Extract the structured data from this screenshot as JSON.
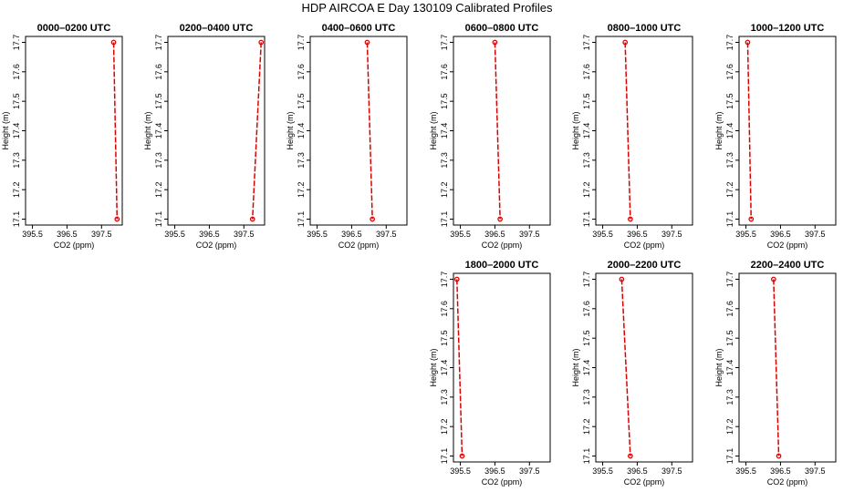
{
  "page": {
    "title": "HDP AIRCOA E  Day 130109  Calibrated Profiles"
  },
  "chart_data": [
    {
      "type": "line",
      "title": "0000–0200 UTC",
      "xlabel": "CO2 (ppm)",
      "ylabel": "Height (m)",
      "xlim": [
        395.3,
        398.1
      ],
      "ylim": [
        17.08,
        17.72
      ],
      "xticks": [
        395.5,
        396.5,
        397.5
      ],
      "xtick_labels": [
        "395.5",
        "396.5",
        "397.5"
      ],
      "yticks": [
        17.1,
        17.2,
        17.3,
        17.4,
        17.5,
        17.6,
        17.7
      ],
      "ytick_labels": [
        "17.1",
        "17.2",
        "17.3",
        "17.4",
        "17.5",
        "17.6",
        "17.7"
      ],
      "points": [
        {
          "x": 397.85,
          "y": 17.7
        },
        {
          "x": 397.95,
          "y": 17.1
        }
      ],
      "color": "#dd0000"
    },
    {
      "type": "line",
      "title": "0200–0400 UTC",
      "xlabel": "CO2 (ppm)",
      "ylabel": "Height (m)",
      "xlim": [
        395.3,
        398.1
      ],
      "ylim": [
        17.08,
        17.72
      ],
      "xticks": [
        395.5,
        396.5,
        397.5
      ],
      "xtick_labels": [
        "395.5",
        "396.5",
        "397.5"
      ],
      "yticks": [
        17.1,
        17.2,
        17.3,
        17.4,
        17.5,
        17.6,
        17.7
      ],
      "ytick_labels": [
        "17.1",
        "17.2",
        "17.3",
        "17.4",
        "17.5",
        "17.6",
        "17.7"
      ],
      "points": [
        {
          "x": 398.0,
          "y": 17.7
        },
        {
          "x": 397.75,
          "y": 17.1
        }
      ],
      "color": "#dd0000"
    },
    {
      "type": "line",
      "title": "0400–0600 UTC",
      "xlabel": "CO2 (ppm)",
      "ylabel": "Height (m)",
      "xlim": [
        395.3,
        398.1
      ],
      "ylim": [
        17.08,
        17.72
      ],
      "xticks": [
        395.5,
        396.5,
        397.5
      ],
      "xtick_labels": [
        "395.5",
        "396.5",
        "397.5"
      ],
      "yticks": [
        17.1,
        17.2,
        17.3,
        17.4,
        17.5,
        17.6,
        17.7
      ],
      "ytick_labels": [
        "17.1",
        "17.2",
        "17.3",
        "17.4",
        "17.5",
        "17.6",
        "17.7"
      ],
      "points": [
        {
          "x": 396.95,
          "y": 17.7
        },
        {
          "x": 397.1,
          "y": 17.1
        }
      ],
      "color": "#dd0000"
    },
    {
      "type": "line",
      "title": "0600–0800 UTC",
      "xlabel": "CO2 (ppm)",
      "ylabel": "Height (m)",
      "xlim": [
        395.3,
        398.1
      ],
      "ylim": [
        17.08,
        17.72
      ],
      "xticks": [
        395.5,
        396.5,
        397.5
      ],
      "xtick_labels": [
        "395.5",
        "396.5",
        "397.5"
      ],
      "yticks": [
        17.1,
        17.2,
        17.3,
        17.4,
        17.5,
        17.6,
        17.7
      ],
      "ytick_labels": [
        "17.1",
        "17.2",
        "17.3",
        "17.4",
        "17.5",
        "17.6",
        "17.7"
      ],
      "points": [
        {
          "x": 396.5,
          "y": 17.7
        },
        {
          "x": 396.65,
          "y": 17.1
        }
      ],
      "color": "#dd0000"
    },
    {
      "type": "line",
      "title": "0800–1000 UTC",
      "xlabel": "CO2 (ppm)",
      "ylabel": "Height (m)",
      "xlim": [
        395.3,
        398.1
      ],
      "ylim": [
        17.08,
        17.72
      ],
      "xticks": [
        395.5,
        396.5,
        397.5
      ],
      "xtick_labels": [
        "395.5",
        "396.5",
        "397.5"
      ],
      "yticks": [
        17.1,
        17.2,
        17.3,
        17.4,
        17.5,
        17.6,
        17.7
      ],
      "ytick_labels": [
        "17.1",
        "17.2",
        "17.3",
        "17.4",
        "17.5",
        "17.6",
        "17.7"
      ],
      "points": [
        {
          "x": 396.15,
          "y": 17.7
        },
        {
          "x": 396.3,
          "y": 17.1
        }
      ],
      "color": "#dd0000"
    },
    {
      "type": "line",
      "title": "1000–1200 UTC",
      "xlabel": "CO2 (ppm)",
      "ylabel": "Height (m)",
      "xlim": [
        395.3,
        398.1
      ],
      "ylim": [
        17.08,
        17.72
      ],
      "xticks": [
        395.5,
        396.5,
        397.5
      ],
      "xtick_labels": [
        "395.5",
        "396.5",
        "397.5"
      ],
      "yticks": [
        17.1,
        17.2,
        17.3,
        17.4,
        17.5,
        17.6,
        17.7
      ],
      "ytick_labels": [
        "17.1",
        "17.2",
        "17.3",
        "17.4",
        "17.5",
        "17.6",
        "17.7"
      ],
      "points": [
        {
          "x": 395.55,
          "y": 17.7
        },
        {
          "x": 395.65,
          "y": 17.1
        }
      ],
      "color": "#dd0000"
    },
    {
      "type": "line",
      "title": "1800–2000 UTC",
      "xlabel": "CO2 (ppm)",
      "ylabel": "Height (m)",
      "xlim": [
        395.3,
        398.1
      ],
      "ylim": [
        17.08,
        17.72
      ],
      "xticks": [
        395.5,
        396.5,
        397.5
      ],
      "xtick_labels": [
        "395.5",
        "396.5",
        "397.5"
      ],
      "yticks": [
        17.1,
        17.2,
        17.3,
        17.4,
        17.5,
        17.6,
        17.7
      ],
      "ytick_labels": [
        "17.1",
        "17.2",
        "17.3",
        "17.4",
        "17.5",
        "17.6",
        "17.7"
      ],
      "points": [
        {
          "x": 395.4,
          "y": 17.7
        },
        {
          "x": 395.55,
          "y": 17.1
        }
      ],
      "color": "#dd0000"
    },
    {
      "type": "line",
      "title": "2000–2200 UTC",
      "xlabel": "CO2 (ppm)",
      "ylabel": "Height (m)",
      "xlim": [
        395.3,
        398.1
      ],
      "ylim": [
        17.08,
        17.72
      ],
      "xticks": [
        395.5,
        396.5,
        397.5
      ],
      "xtick_labels": [
        "395.5",
        "396.5",
        "397.5"
      ],
      "yticks": [
        17.1,
        17.2,
        17.3,
        17.4,
        17.5,
        17.6,
        17.7
      ],
      "ytick_labels": [
        "17.1",
        "17.2",
        "17.3",
        "17.4",
        "17.5",
        "17.6",
        "17.7"
      ],
      "points": [
        {
          "x": 396.05,
          "y": 17.7
        },
        {
          "x": 396.3,
          "y": 17.1
        }
      ],
      "color": "#dd0000"
    },
    {
      "type": "line",
      "title": "2200–2400 UTC",
      "xlabel": "CO2 (ppm)",
      "ylabel": "Height (m)",
      "xlim": [
        395.3,
        398.1
      ],
      "ylim": [
        17.08,
        17.72
      ],
      "xticks": [
        395.5,
        396.5,
        397.5
      ],
      "xtick_labels": [
        "395.5",
        "396.5",
        "397.5"
      ],
      "yticks": [
        17.1,
        17.2,
        17.3,
        17.4,
        17.5,
        17.6,
        17.7
      ],
      "ytick_labels": [
        "17.1",
        "17.2",
        "17.3",
        "17.4",
        "17.5",
        "17.6",
        "17.7"
      ],
      "points": [
        {
          "x": 396.3,
          "y": 17.7
        },
        {
          "x": 396.45,
          "y": 17.1
        }
      ],
      "color": "#dd0000"
    }
  ]
}
